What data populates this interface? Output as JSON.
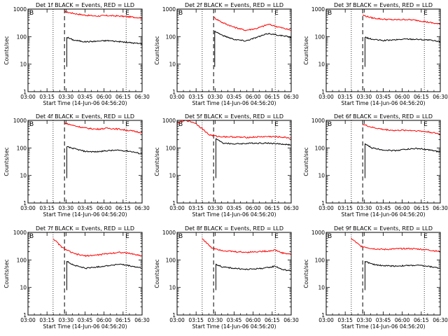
{
  "chart_data": {
    "type": "line",
    "x_ticks": [
      "03:00",
      "03:15",
      "03:30",
      "03:45",
      "06:00",
      "06:15",
      "06:30"
    ],
    "xlabel": "Start Time (14-Jun-06 04:56:20)",
    "ylabel": "Counts/sec",
    "y_scale": "log",
    "ylim": [
      1,
      1000
    ],
    "y_ticks": [
      "1",
      "10",
      "100",
      "1000"
    ],
    "xlim": [
      0,
      100
    ],
    "markers": {
      "dotted_left": 22,
      "dashed": 32,
      "dotted_right": 86,
      "corner_left": "B",
      "corner_right": "E"
    },
    "colors": {
      "events": "#000000",
      "lld": "#ff0000"
    },
    "panels": [
      {
        "title": "Det 1f BLACK = Events, RED = LLD",
        "red": [
          [
            32,
            800
          ],
          [
            40,
            700
          ],
          [
            50,
            600
          ],
          [
            60,
            560
          ],
          [
            70,
            580
          ],
          [
            80,
            560
          ],
          [
            90,
            520
          ],
          [
            100,
            480
          ]
        ],
        "black": [
          [
            34,
            95
          ],
          [
            40,
            75
          ],
          [
            50,
            65
          ],
          [
            60,
            68
          ],
          [
            70,
            72
          ],
          [
            80,
            66
          ],
          [
            90,
            60
          ],
          [
            100,
            55
          ]
        ]
      },
      {
        "title": "Det 2f BLACK = Events, RED = LLD",
        "red": [
          [
            32,
            500
          ],
          [
            40,
            320
          ],
          [
            50,
            220
          ],
          [
            60,
            170
          ],
          [
            70,
            200
          ],
          [
            80,
            280
          ],
          [
            88,
            230
          ],
          [
            100,
            170
          ]
        ],
        "black": [
          [
            33,
            160
          ],
          [
            40,
            110
          ],
          [
            50,
            80
          ],
          [
            60,
            70
          ],
          [
            70,
            95
          ],
          [
            80,
            130
          ],
          [
            88,
            115
          ],
          [
            100,
            95
          ]
        ]
      },
      {
        "title": "Det 3f BLACK = Events, RED = LLD",
        "red": [
          [
            32,
            600
          ],
          [
            40,
            480
          ],
          [
            50,
            430
          ],
          [
            60,
            410
          ],
          [
            70,
            420
          ],
          [
            80,
            390
          ],
          [
            90,
            330
          ],
          [
            100,
            280
          ]
        ],
        "black": [
          [
            34,
            95
          ],
          [
            40,
            80
          ],
          [
            50,
            72
          ],
          [
            60,
            76
          ],
          [
            70,
            82
          ],
          [
            80,
            80
          ],
          [
            90,
            75
          ],
          [
            100,
            65
          ]
        ]
      },
      {
        "title": "Det 4f BLACK = Events, RED = LLD",
        "red": [
          [
            32,
            800
          ],
          [
            40,
            650
          ],
          [
            50,
            530
          ],
          [
            60,
            480
          ],
          [
            70,
            520
          ],
          [
            80,
            480
          ],
          [
            90,
            420
          ],
          [
            100,
            360
          ]
        ],
        "black": [
          [
            34,
            110
          ],
          [
            40,
            95
          ],
          [
            50,
            75
          ],
          [
            60,
            72
          ],
          [
            70,
            80
          ],
          [
            80,
            82
          ],
          [
            90,
            75
          ],
          [
            100,
            60
          ]
        ]
      },
      {
        "title": "Det 5f BLACK = Events, RED = LLD",
        "red": [
          [
            0,
            800
          ],
          [
            8,
            1000
          ],
          [
            16,
            800
          ],
          [
            22,
            500
          ],
          [
            28,
            300
          ],
          [
            36,
            260
          ],
          [
            50,
            250
          ],
          [
            60,
            240
          ],
          [
            70,
            250
          ],
          [
            80,
            260
          ],
          [
            90,
            250
          ],
          [
            100,
            230
          ]
        ],
        "black": [
          [
            34,
            220
          ],
          [
            40,
            150
          ],
          [
            50,
            140
          ],
          [
            60,
            145
          ],
          [
            70,
            150
          ],
          [
            80,
            150
          ],
          [
            90,
            140
          ],
          [
            100,
            130
          ]
        ]
      },
      {
        "title": "Det 6f BLACK = Events, RED = LLD",
        "red": [
          [
            32,
            720
          ],
          [
            40,
            560
          ],
          [
            50,
            470
          ],
          [
            60,
            430
          ],
          [
            70,
            440
          ],
          [
            80,
            420
          ],
          [
            90,
            380
          ],
          [
            100,
            320
          ]
        ],
        "black": [
          [
            34,
            140
          ],
          [
            40,
            100
          ],
          [
            50,
            85
          ],
          [
            60,
            80
          ],
          [
            70,
            90
          ],
          [
            80,
            95
          ],
          [
            90,
            85
          ],
          [
            100,
            70
          ]
        ]
      },
      {
        "title": "Det 7f BLACK = Events, RED = LLD",
        "red": [
          [
            22,
            600
          ],
          [
            30,
            280
          ],
          [
            40,
            170
          ],
          [
            50,
            140
          ],
          [
            60,
            150
          ],
          [
            70,
            170
          ],
          [
            80,
            190
          ],
          [
            90,
            170
          ],
          [
            100,
            140
          ]
        ],
        "black": [
          [
            34,
            90
          ],
          [
            40,
            65
          ],
          [
            50,
            50
          ],
          [
            60,
            55
          ],
          [
            70,
            62
          ],
          [
            80,
            70
          ],
          [
            90,
            60
          ],
          [
            100,
            50
          ]
        ]
      },
      {
        "title": "Det 8f BLACK = Events, RED = LLD",
        "red": [
          [
            22,
            600
          ],
          [
            30,
            280
          ],
          [
            40,
            220
          ],
          [
            50,
            200
          ],
          [
            60,
            190
          ],
          [
            70,
            200
          ],
          [
            80,
            210
          ],
          [
            86,
            230
          ],
          [
            92,
            180
          ],
          [
            100,
            160
          ]
        ],
        "black": [
          [
            34,
            70
          ],
          [
            40,
            55
          ],
          [
            50,
            50
          ],
          [
            60,
            45
          ],
          [
            70,
            48
          ],
          [
            80,
            52
          ],
          [
            86,
            60
          ],
          [
            92,
            45
          ],
          [
            100,
            40
          ]
        ]
      },
      {
        "title": "Det 9f BLACK = Events, RED = LLD",
        "red": [
          [
            22,
            600
          ],
          [
            30,
            320
          ],
          [
            40,
            260
          ],
          [
            50,
            240
          ],
          [
            60,
            250
          ],
          [
            70,
            260
          ],
          [
            80,
            250
          ],
          [
            90,
            230
          ],
          [
            100,
            200
          ]
        ],
        "black": [
          [
            34,
            90
          ],
          [
            40,
            70
          ],
          [
            50,
            62
          ],
          [
            60,
            60
          ],
          [
            70,
            62
          ],
          [
            80,
            64
          ],
          [
            90,
            58
          ],
          [
            100,
            50
          ]
        ]
      }
    ]
  }
}
